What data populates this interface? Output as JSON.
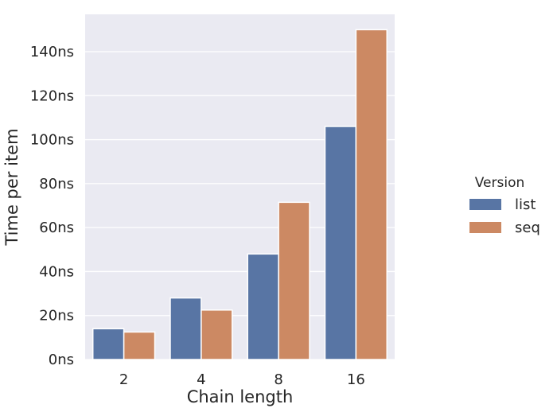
{
  "chart_data": {
    "type": "bar",
    "title": "",
    "xlabel": "Chain length",
    "ylabel": "Time per item",
    "categories": [
      "2",
      "4",
      "8",
      "16"
    ],
    "series": [
      {
        "name": "list",
        "color": "#5875a4",
        "values": [
          14,
          28,
          48,
          106
        ]
      },
      {
        "name": "seq",
        "color": "#cc8963",
        "values": [
          12.5,
          22.5,
          71.5,
          150
        ]
      }
    ],
    "ylim": [
      0,
      157
    ],
    "yticks": [
      0,
      20,
      40,
      60,
      80,
      100,
      120,
      140
    ],
    "ytick_labels": [
      "0ns",
      "20ns",
      "40ns",
      "60ns",
      "80ns",
      "100ns",
      "120ns",
      "140ns"
    ],
    "legend": {
      "title": "Version",
      "placement": "right"
    },
    "grid": true,
    "style": {
      "background": "#eaeaf2",
      "grid_color": "#ffffff"
    }
  }
}
